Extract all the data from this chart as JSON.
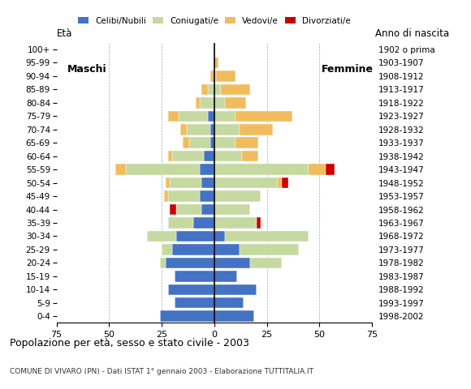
{
  "age_groups": [
    "0-4",
    "5-9",
    "10-14",
    "15-19",
    "20-24",
    "25-29",
    "30-34",
    "35-39",
    "40-44",
    "45-49",
    "50-54",
    "55-59",
    "60-64",
    "65-69",
    "70-74",
    "75-79",
    "80-84",
    "85-89",
    "90-94",
    "95-99",
    "100+"
  ],
  "birth_years": [
    "1998-2002",
    "1993-1997",
    "1988-1992",
    "1983-1987",
    "1978-1982",
    "1973-1977",
    "1968-1972",
    "1963-1967",
    "1958-1962",
    "1953-1957",
    "1948-1952",
    "1943-1947",
    "1938-1942",
    "1933-1937",
    "1928-1932",
    "1923-1927",
    "1918-1922",
    "1913-1917",
    "1908-1912",
    "1903-1907",
    "1902 o prima"
  ],
  "colors": {
    "celibe": "#4472C4",
    "coniugato": "#C5D9A0",
    "vedovo": "#F0BC5E",
    "divorziato": "#CC0000"
  },
  "males": {
    "celibe": [
      26,
      19,
      22,
      19,
      23,
      20,
      18,
      10,
      6,
      7,
      6,
      7,
      5,
      2,
      2,
      3,
      0,
      0,
      0,
      0,
      0
    ],
    "coniugato": [
      0,
      0,
      0,
      0,
      3,
      5,
      14,
      12,
      12,
      15,
      15,
      35,
      15,
      10,
      11,
      14,
      7,
      3,
      0,
      0,
      0
    ],
    "vedovo": [
      0,
      0,
      0,
      0,
      0,
      0,
      0,
      0,
      0,
      2,
      2,
      5,
      2,
      3,
      3,
      5,
      2,
      3,
      2,
      0,
      0
    ],
    "divorziato": [
      0,
      0,
      0,
      0,
      0,
      0,
      0,
      0,
      3,
      0,
      0,
      0,
      0,
      0,
      0,
      0,
      0,
      0,
      0,
      0,
      0
    ]
  },
  "females": {
    "celibe": [
      19,
      14,
      20,
      11,
      17,
      12,
      5,
      0,
      0,
      0,
      0,
      0,
      0,
      0,
      0,
      0,
      0,
      0,
      0,
      0,
      0
    ],
    "coniugato": [
      0,
      0,
      0,
      0,
      15,
      28,
      40,
      20,
      17,
      22,
      30,
      45,
      13,
      10,
      12,
      10,
      5,
      3,
      1,
      0,
      0
    ],
    "vedovo": [
      0,
      0,
      0,
      0,
      0,
      0,
      0,
      0,
      0,
      0,
      2,
      8,
      8,
      11,
      16,
      27,
      10,
      14,
      9,
      2,
      0
    ],
    "divorziato": [
      0,
      0,
      0,
      0,
      0,
      0,
      0,
      2,
      0,
      0,
      3,
      4,
      0,
      0,
      0,
      0,
      0,
      0,
      0,
      0,
      0
    ]
  },
  "title": "Popolazione per età, sesso e stato civile - 2003",
  "subtitle": "COMUNE DI VIVARO (PN) - Dati ISTAT 1° gennaio 2003 - Elaborazione TUTTITALIA.IT",
  "eta_label": "Età",
  "anno_label": "Anno di nascita",
  "maschi_label": "Maschi",
  "femmine_label": "Femmine",
  "xlim": 75,
  "legend_labels": [
    "Celibi/Nubili",
    "Coniugati/e",
    "Vedovi/e",
    "Divorziati/e"
  ]
}
